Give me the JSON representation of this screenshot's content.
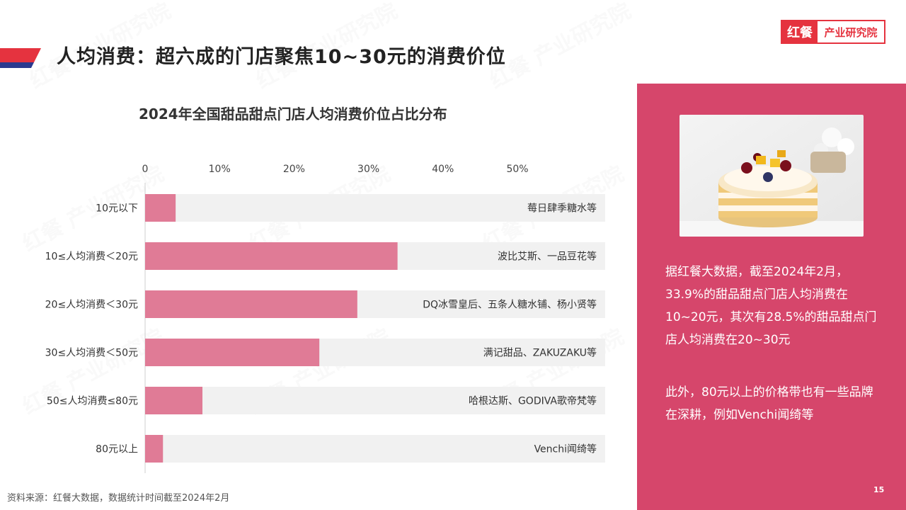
{
  "header": {
    "title": "人均消费：超六成的门店聚焦10~30元的消费价位",
    "logo_mark": "红餐",
    "logo_text": "产业研究院"
  },
  "colors": {
    "bar": "#e07b96",
    "track": "#f1f1f1",
    "panel": "#d6466b",
    "accent_red": "#e5333f",
    "accent_blue": "#2b3a8f"
  },
  "chart_data": {
    "type": "bar",
    "orientation": "horizontal",
    "title": "2024年全国甜品甜点门店人均消费价位占比分布",
    "xlabel": "",
    "ylabel": "",
    "xlim": [
      0,
      62
    ],
    "ticks": [
      0,
      10,
      20,
      30,
      40,
      50
    ],
    "tick_labels": [
      "0",
      "10%",
      "20%",
      "30%",
      "40%",
      "50%"
    ],
    "grid": false,
    "categories": [
      "10元以下",
      "10≤人均消费＜20元",
      "20≤人均消费＜30元",
      "30≤人均消费＜50元",
      "50≤人均消费≤80元",
      "80元以上"
    ],
    "values": [
      4.1,
      33.9,
      28.5,
      23.4,
      7.7,
      2.4
    ],
    "annotations": [
      "莓日肆季糖水等",
      "波比艾斯、一品豆花等",
      "DQ冰雪皇后、五条人糖水铺、杨小贤等",
      "满记甜品、ZAKUZAKU等",
      "哈根达斯、GODIVA歌帝梵等",
      "Venchi闻绮等"
    ]
  },
  "panel": {
    "paragraph1": "据红餐大数据，截至2024年2月，33.9%的甜品甜点门店人均消费在10~20元，其次有28.5%的甜品甜点门店人均消费在20~30元",
    "paragraph2": "此外，80元以上的价格带也有一些品牌在深耕，例如Venchi闻绮等",
    "image_icon": "cake-photo"
  },
  "footer": {
    "source": "资料来源：红餐大数据，数据统计时间截至2024年2月",
    "page_number": "15"
  }
}
